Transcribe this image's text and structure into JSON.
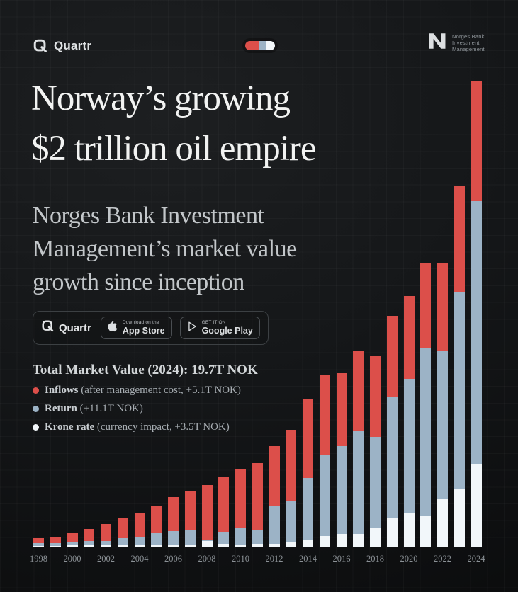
{
  "header": {
    "brand": "Quartr",
    "nbim_logo_lines": [
      "Norges Bank",
      "Investment",
      "Management"
    ]
  },
  "hero": {
    "title_line1": "Norway’s growing",
    "title_line2": "$2 trillion oil empire",
    "subtitle_line1": "Norges Bank Investment",
    "subtitle_line2": "Management’s market value",
    "subtitle_line3": "growth since inception"
  },
  "badges": {
    "brand": "Quartr",
    "appstore_caption": "Download on the",
    "appstore_label": "App Store",
    "googleplay_caption": "GET IT ON",
    "googleplay_label": "Google Play"
  },
  "legend": {
    "title": "Total Market Value (2024): 19.7T NOK",
    "items": [
      {
        "label": "Inflows",
        "detail": " (after management cost, +5.1T NOK)",
        "color": "#dc4f4a"
      },
      {
        "label": "Return",
        "detail": " (+11.1T NOK)",
        "color": "#9cb3c6"
      },
      {
        "label": "Krone rate",
        "detail": " (currency impact, +3.5T NOK)",
        "color": "#f2f7fa"
      }
    ]
  },
  "chart_data": {
    "type": "bar",
    "stacked": true,
    "title": "Norges Bank Investment Management’s market value growth since inception",
    "unit": "T NOK",
    "ylim": [
      0,
      19.7
    ],
    "grid": true,
    "legend_position": "middle-left",
    "total_2024": "19.7T NOK",
    "categories": [
      1998,
      1999,
      2000,
      2001,
      2002,
      2003,
      2004,
      2005,
      2006,
      2007,
      2008,
      2009,
      2010,
      2011,
      2012,
      2013,
      2014,
      2015,
      2016,
      2017,
      2018,
      2019,
      2020,
      2021,
      2022,
      2023,
      2024
    ],
    "x_tick_labels": [
      "1998",
      "2000",
      "2002",
      "2004",
      "2006",
      "2008",
      "2010",
      "2012",
      "2014",
      "2016",
      "2018",
      "2020",
      "2022",
      "2024"
    ],
    "series": [
      {
        "name": "Krone rate",
        "color": "#f2f7fa",
        "values": [
          0.04,
          0.04,
          0.08,
          0.08,
          0.09,
          0.1,
          0.1,
          0.1,
          0.1,
          0.1,
          0.25,
          0.12,
          0.1,
          0.12,
          0.12,
          0.2,
          0.3,
          0.45,
          0.55,
          0.55,
          0.8,
          1.2,
          1.45,
          1.3,
          2.0,
          2.45,
          3.5
        ]
      },
      {
        "name": "Return",
        "color": "#9cb3c6",
        "values": [
          0.1,
          0.12,
          0.12,
          0.15,
          0.16,
          0.25,
          0.33,
          0.48,
          0.55,
          0.58,
          0.05,
          0.5,
          0.68,
          0.6,
          1.6,
          1.75,
          2.6,
          3.4,
          3.7,
          4.35,
          3.85,
          5.15,
          5.65,
          7.1,
          6.3,
          8.3,
          11.1
        ]
      },
      {
        "name": "Inflows",
        "color": "#dc4f4a",
        "values": [
          0.21,
          0.24,
          0.4,
          0.52,
          0.7,
          0.85,
          1.02,
          1.17,
          1.45,
          1.67,
          2.3,
          2.33,
          2.52,
          2.83,
          2.53,
          3.0,
          3.35,
          3.4,
          3.1,
          3.4,
          3.4,
          3.4,
          3.5,
          3.6,
          3.7,
          4.5,
          5.1
        ]
      }
    ]
  }
}
